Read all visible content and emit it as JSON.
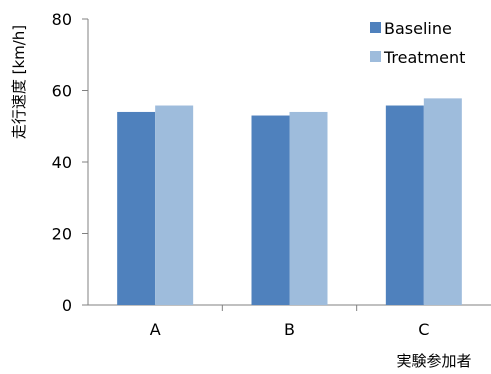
{
  "chart_data": {
    "type": "bar",
    "categories": [
      "A",
      "B",
      "C"
    ],
    "series": [
      {
        "name": "Baseline",
        "values": [
          54,
          53,
          55.8
        ],
        "color": "#4f81bd"
      },
      {
        "name": "Treatment",
        "values": [
          55.8,
          54,
          57.8
        ],
        "color": "#9ebcdc"
      }
    ],
    "ylim": [
      0,
      80
    ],
    "yticks": [
      0,
      20,
      40,
      60,
      80
    ],
    "ylabel": "走行速度 [km/h]",
    "xlabel": "実験参加者",
    "legend": "top-right",
    "grid": false
  }
}
